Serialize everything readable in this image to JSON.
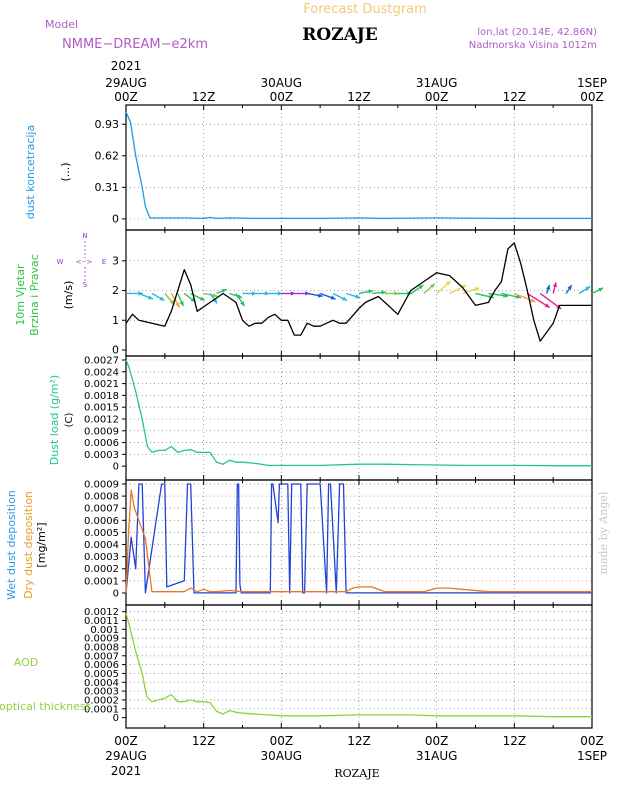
{
  "header": {
    "top_title": "Forecast Dustgram",
    "model_label": "Model",
    "model_name": "NMME−DREAM−e2km",
    "station": "ROZAJE",
    "lonlat": "lon,lat (20.14E, 42.86N)",
    "altitude": "Nadmorska Visina 1012m",
    "watermark": "made by Angel",
    "bottom_station": "ROZAJE"
  },
  "time_axis": {
    "year": "2021",
    "ticks": [
      {
        "hour": 0,
        "top": "00Z",
        "bottom": "29AUG"
      },
      {
        "hour": 12,
        "top": "12Z",
        "bottom": ""
      },
      {
        "hour": 24,
        "top": "00Z",
        "bottom": "30AUG"
      },
      {
        "hour": 36,
        "top": "12Z",
        "bottom": ""
      },
      {
        "hour": 48,
        "top": "00Z",
        "bottom": "31AUG"
      },
      {
        "hour": 60,
        "top": "12Z",
        "bottom": ""
      },
      {
        "hour": 72,
        "top": "00Z",
        "bottom": "1SEP"
      }
    ]
  },
  "compass": {
    "n": "N",
    "s": "S",
    "w": "W",
    "e": "E",
    "arrow": "<-->"
  },
  "panels": {
    "dust": {
      "ylabel_blue": "dust koncetracija",
      "ylabel_black": "(...)"
    },
    "wind": {
      "ylabel_green1": "10m Vjetar",
      "ylabel_green2": "Brzina i Pravac",
      "ylabel_black": "(m/s)"
    },
    "load": {
      "ylabel_green": "Dust load (g/m²)",
      "ylabel_black": "(C)"
    },
    "dep": {
      "ylabel_wet": "Wet dust deposition",
      "ylabel_dry": "Dry dust deposition",
      "ylabel_black": "[mg/m²]"
    },
    "aod": {
      "label1": "AOD",
      "label2": "optical thickness"
    }
  },
  "chart_data": [
    {
      "type": "line",
      "id": "dust",
      "ylabel": "dust koncetracija",
      "ylim": [
        -0.05,
        1.08
      ],
      "yticks": [
        "0",
        "0.31",
        "0.62",
        "0.93"
      ],
      "ytick_values": [
        0,
        0.31,
        0.62,
        0.93
      ],
      "grid": true,
      "series": [
        {
          "color": "#1e9be6",
          "x": [
            0,
            0.7,
            1.5,
            2.5,
            3,
            3.7,
            6,
            9,
            12,
            13,
            14,
            16,
            20,
            24,
            30,
            36,
            40,
            48,
            52,
            60,
            66,
            72
          ],
          "y": [
            1.05,
            0.95,
            0.62,
            0.31,
            0.12,
            0.01,
            0.01,
            0.01,
            0.005,
            0.015,
            0.005,
            0.01,
            0.005,
            0.005,
            0.005,
            0.01,
            0.005,
            0.01,
            0.008,
            0.005,
            0.005,
            0.005
          ]
        }
      ]
    },
    {
      "type": "line",
      "id": "wind",
      "ylabel": "10m Vjetar Brzina i Pravac (m/s)",
      "ylim": [
        0,
        3.9
      ],
      "yticks": [
        "0",
        "1",
        "2",
        "3"
      ],
      "ytick_values": [
        0,
        1,
        2,
        3
      ],
      "grid": true,
      "series": [
        {
          "color": "#000000",
          "x": [
            0,
            1,
            2,
            4,
            6,
            7,
            9,
            10,
            11,
            13,
            15,
            17,
            18,
            19,
            20,
            21,
            22,
            23,
            24,
            25,
            26,
            27,
            28,
            29,
            30,
            31,
            32,
            33,
            34,
            36,
            37,
            38,
            39,
            40,
            42,
            44,
            46,
            48,
            50,
            52,
            54,
            56,
            57,
            58,
            59,
            60,
            61,
            62,
            63,
            64,
            65,
            66,
            67,
            68,
            69,
            70,
            71,
            72
          ],
          "y": [
            0.9,
            1.2,
            1.0,
            0.9,
            0.8,
            1.3,
            2.7,
            2.2,
            1.3,
            1.6,
            1.9,
            1.6,
            1.0,
            0.8,
            0.9,
            0.9,
            1.1,
            1.2,
            1.0,
            1.0,
            0.5,
            0.5,
            0.9,
            0.8,
            0.8,
            0.9,
            1.0,
            0.9,
            0.9,
            1.4,
            1.6,
            1.7,
            1.8,
            1.6,
            1.2,
            2.0,
            2.3,
            2.6,
            2.5,
            2.1,
            1.5,
            1.6,
            2.0,
            2.3,
            3.4,
            3.6,
            2.9,
            2.0,
            1.0,
            0.3,
            0.6,
            0.9,
            1.5,
            1.5,
            1.5,
            1.5,
            1.5,
            1.5
          ]
        }
      ],
      "arrows": [
        {
          "h": 0,
          "u": 1.2,
          "v": 0.0,
          "c": "#2ab7e8"
        },
        {
          "h": 2,
          "u": 1.0,
          "v": -0.4,
          "c": "#2ab7e8"
        },
        {
          "h": 4,
          "u": 0.9,
          "v": -0.5,
          "c": "#2ab7e8"
        },
        {
          "h": 6,
          "u": 0.7,
          "v": -0.8,
          "c": "#8acb3c"
        },
        {
          "h": 7,
          "u": 0.6,
          "v": -1.0,
          "c": "#f2a331"
        },
        {
          "h": 8,
          "u": 0.4,
          "v": -0.9,
          "c": "#26c06a"
        },
        {
          "h": 9,
          "u": 0.8,
          "v": -0.6,
          "c": "#26c06a"
        },
        {
          "h": 10,
          "u": 1.0,
          "v": -0.5,
          "c": "#26c06a"
        },
        {
          "h": 12,
          "u": 1.0,
          "v": -0.2,
          "c": "#8acb3c"
        },
        {
          "h": 13,
          "u": 0.5,
          "v": -0.7,
          "c": "#2ab7e8"
        },
        {
          "h": 14,
          "u": 0.7,
          "v": 0.3,
          "c": "#26c06a"
        },
        {
          "h": 16,
          "u": 0.9,
          "v": -0.3,
          "c": "#26c06a"
        },
        {
          "h": 17,
          "u": 0.6,
          "v": -0.9,
          "c": "#26c06a"
        },
        {
          "h": 18,
          "u": 1.0,
          "v": 0.0,
          "c": "#2ab7e8"
        },
        {
          "h": 20,
          "u": 1.0,
          "v": 0.0,
          "c": "#2ab7e8"
        },
        {
          "h": 22,
          "u": 1.0,
          "v": 0.0,
          "c": "#2ab7e8"
        },
        {
          "h": 24,
          "u": 1.0,
          "v": 0.0,
          "c": "#9b30d8"
        },
        {
          "h": 26,
          "u": 1.1,
          "v": 0.0,
          "c": "#9b30d8"
        },
        {
          "h": 28,
          "u": 1.1,
          "v": -0.2,
          "c": "#1a5bd8"
        },
        {
          "h": 30,
          "u": 1.1,
          "v": -0.4,
          "c": "#1a5bd8"
        },
        {
          "h": 32,
          "u": 1.0,
          "v": -0.5,
          "c": "#2ab7e8"
        },
        {
          "h": 34,
          "u": 1.0,
          "v": -0.3,
          "c": "#2ab7e8"
        },
        {
          "h": 36,
          "u": 1.0,
          "v": 0.2,
          "c": "#26c06a"
        },
        {
          "h": 38,
          "u": 1.0,
          "v": 0.1,
          "c": "#26c06a"
        },
        {
          "h": 40,
          "u": 1.0,
          "v": 0.0,
          "c": "#8acb3c"
        },
        {
          "h": 42,
          "u": 1.0,
          "v": 0.0,
          "c": "#26c06a"
        },
        {
          "h": 44,
          "u": 0.9,
          "v": 0.6,
          "c": "#26c06a"
        },
        {
          "h": 46,
          "u": 0.8,
          "v": 0.7,
          "c": "#8acb3c"
        },
        {
          "h": 48,
          "u": 1.0,
          "v": 0.9,
          "c": "#e8d93a"
        },
        {
          "h": 50,
          "u": 1.2,
          "v": 0.6,
          "c": "#e8d93a"
        },
        {
          "h": 52,
          "u": 1.2,
          "v": 0.4,
          "c": "#e8d93a"
        },
        {
          "h": 54,
          "u": 1.3,
          "v": -0.3,
          "c": "#26c06a"
        },
        {
          "h": 56,
          "u": 1.4,
          "v": -0.2,
          "c": "#26c06a"
        },
        {
          "h": 58,
          "u": 1.4,
          "v": -0.3,
          "c": "#26c06a"
        },
        {
          "h": 60,
          "u": 1.5,
          "v": -0.6,
          "c": "#f2a331"
        },
        {
          "h": 62,
          "u": 1.6,
          "v": -1.0,
          "c": "#e8208a"
        },
        {
          "h": 64,
          "u": 1.5,
          "v": -1.1,
          "c": "#e8208a"
        },
        {
          "h": 65,
          "u": 0.2,
          "v": 0.6,
          "c": "#1a5bd8"
        },
        {
          "h": 66,
          "u": 0.2,
          "v": 0.8,
          "c": "#e8208a"
        },
        {
          "h": 68,
          "u": 0.4,
          "v": 0.6,
          "c": "#1a5bd8"
        },
        {
          "h": 70,
          "u": 0.8,
          "v": 0.5,
          "c": "#2ab7e8"
        },
        {
          "h": 72,
          "u": 0.8,
          "v": 0.4,
          "c": "#26c06a"
        }
      ]
    },
    {
      "type": "line",
      "id": "load",
      "ylabel": "Dust load (g/m²)",
      "ylim": [
        -0.0002,
        0.0027
      ],
      "yticks": [
        "0",
        "0.0003",
        "0.0006",
        "0.0009",
        "0.0012",
        "0.0015",
        "0.0018",
        "0.0021",
        "0.0024",
        "0.0027"
      ],
      "ytick_values": [
        0,
        0.0003,
        0.0006,
        0.0009,
        0.0012,
        0.0015,
        0.0018,
        0.0021,
        0.0024,
        0.0027
      ],
      "grid": true,
      "series": [
        {
          "color": "#24c58f",
          "x": [
            0,
            0.5,
            1.5,
            2.5,
            3.3,
            4,
            5,
            6,
            7,
            8,
            9,
            10,
            11,
            12,
            13,
            14,
            15,
            16,
            17,
            18,
            20,
            22,
            24,
            30,
            36,
            40,
            44,
            48,
            52,
            56,
            60,
            66,
            72
          ],
          "y": [
            0.0027,
            0.0025,
            0.0019,
            0.0012,
            0.0005,
            0.00035,
            0.0004,
            0.0004,
            0.0005,
            0.00035,
            0.0004,
            0.00042,
            0.00035,
            0.00035,
            0.00035,
            0.0001,
            5e-05,
            0.00015,
            0.0001,
            0.0001,
            7e-05,
            2e-05,
            2e-05,
            2e-05,
            5e-05,
            5e-05,
            4e-05,
            3e-05,
            2e-05,
            2e-05,
            2e-05,
            1e-05,
            1e-05
          ]
        }
      ]
    },
    {
      "type": "line",
      "id": "dep",
      "ylabel": "Wet / Dry dust deposition [mg/m²]",
      "ylim": [
        -5e-05,
        0.0009
      ],
      "yticks": [
        "0",
        "0.0001",
        "0.0002",
        "0.0003",
        "0.0004",
        "0.0005",
        "0.0006",
        "0.0007",
        "0.0008",
        "0.0009"
      ],
      "ytick_values": [
        0,
        0.0001,
        0.0002,
        0.0003,
        0.0004,
        0.0005,
        0.0006,
        0.0007,
        0.0008,
        0.0009
      ],
      "grid": true,
      "series": [
        {
          "name": "Wet dust deposition",
          "color": "#2342d8",
          "x": [
            0,
            0.8,
            1.5,
            2.0,
            2.5,
            3.0,
            5.5,
            6.0,
            6.3,
            9.0,
            9.5,
            10.0,
            10.5,
            13.0,
            17.0,
            17.2,
            17.4,
            17.6,
            17.8,
            22.3,
            22.5,
            22.7,
            23.5,
            23.7,
            23.9,
            25.0,
            25.3,
            25.6,
            26.0,
            27.0,
            27.3,
            27.6,
            28.0,
            29.0,
            30.0,
            31.0,
            31.3,
            31.6,
            32.5,
            33.0,
            33.6,
            34.0,
            35.0,
            40,
            50,
            60,
            72
          ],
          "y": [
            0,
            0.00046,
            0.0002,
            0.0009,
            0.0009,
            0,
            0.0009,
            0.0009,
            5e-05,
            0.0001,
            0.0009,
            0.0009,
            0,
            0,
            0,
            0.0009,
            0.0009,
            7e-05,
            0,
            0,
            0.0009,
            0.0009,
            0.00058,
            0.0009,
            0.0009,
            0.0009,
            0,
            0.0009,
            0.0009,
            0.0009,
            0,
            0,
            0.0009,
            0.0009,
            0.0009,
            0,
            0.0009,
            0.0009,
            0,
            0.0009,
            0.0009,
            0,
            0,
            0,
            0,
            0,
            0
          ]
        },
        {
          "name": "Dry dust deposition",
          "color": "#e8772a",
          "x": [
            0,
            0.4,
            0.8,
            1.3,
            2.0,
            3.0,
            4.0,
            5.0,
            7.0,
            9.0,
            10.0,
            11.0,
            12.0,
            13.0,
            14.0,
            16.0,
            18.0,
            20.0,
            22.0,
            24.0,
            30.0,
            34.0,
            35.0,
            36.0,
            38.0,
            40.0,
            42.0,
            44.0,
            46.0,
            48.0,
            50.0,
            52.0,
            56.0,
            60.0,
            64.0,
            68.0,
            72.0
          ],
          "y": [
            0,
            0.0005,
            0.00085,
            0.0007,
            0.0006,
            0.00045,
            1e-05,
            1e-05,
            1e-05,
            1e-05,
            4e-05,
            1e-05,
            3e-05,
            1e-05,
            1e-05,
            2e-05,
            1e-05,
            1e-05,
            1e-05,
            1e-05,
            1e-05,
            1e-05,
            4e-05,
            5e-05,
            5e-05,
            1e-05,
            1e-05,
            1e-05,
            1e-05,
            4e-05,
            4e-05,
            3e-05,
            1e-05,
            1e-05,
            1e-05,
            1e-05,
            1e-05
          ]
        }
      ]
    },
    {
      "type": "line",
      "id": "aod",
      "ylabel": "AOD optical thickness",
      "ylim": [
        -5e-05,
        0.00123
      ],
      "yticks": [
        "0",
        "0.0001",
        "0.0002",
        "0.0003",
        "0.0004",
        "0.0005",
        "0.0006",
        "0.0007",
        "0.0008",
        "0.0009",
        "0.001",
        "0.0011",
        "0.0012"
      ],
      "ytick_values": [
        0,
        0.0001,
        0.0002,
        0.0003,
        0.0004,
        0.0005,
        0.0006,
        0.0007,
        0.0008,
        0.0009,
        0.001,
        0.0011,
        0.0012
      ],
      "grid": true,
      "series": [
        {
          "color": "#8fd23a",
          "x": [
            0,
            0.5,
            1.5,
            2.5,
            3.2,
            4,
            5,
            6,
            7,
            8,
            9,
            10,
            11,
            12,
            13,
            14,
            15,
            16,
            17,
            18,
            20,
            22,
            24,
            30,
            36,
            40,
            44,
            48,
            52,
            56,
            60,
            66,
            72
          ],
          "y": [
            0.00118,
            0.00105,
            0.00075,
            0.0005,
            0.00024,
            0.00018,
            0.0002,
            0.00022,
            0.00026,
            0.00018,
            0.00018,
            0.0002,
            0.00018,
            0.00018,
            0.00017,
            7e-05,
            4e-05,
            8e-05,
            6e-05,
            5e-05,
            4e-05,
            3e-05,
            2e-05,
            2e-05,
            3e-05,
            3e-05,
            3e-05,
            2e-05,
            2e-05,
            2e-05,
            2e-05,
            1e-05,
            1e-05
          ]
        }
      ]
    }
  ]
}
